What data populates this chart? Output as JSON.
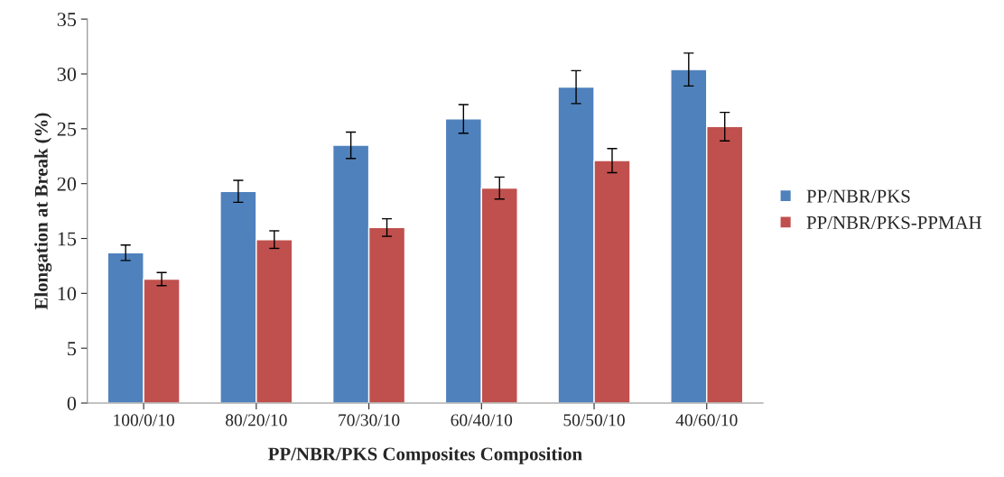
{
  "chart_data": {
    "type": "bar",
    "xlabel": "PP/NBR/PKS Composites Composition",
    "ylabel": "Elongation at Break (%)",
    "categories": [
      "100/0/10",
      "80/20/10",
      "70/30/10",
      "60/40/10",
      "50/50/10",
      "40/60/10"
    ],
    "series": [
      {
        "name": "PP/NBR/PKS",
        "color": "#4f81bd",
        "values": [
          13.7,
          19.3,
          23.5,
          25.9,
          28.8,
          30.4
        ],
        "errors": [
          0.7,
          1.0,
          1.2,
          1.3,
          1.5,
          1.5
        ]
      },
      {
        "name": "PP/NBR/PKS-PPMAH",
        "color": "#c0504d",
        "values": [
          11.3,
          14.9,
          16.0,
          19.6,
          22.1,
          25.2
        ],
        "errors": [
          0.6,
          0.8,
          0.8,
          1.0,
          1.1,
          1.3
        ]
      }
    ],
    "ylim": [
      0,
      35
    ],
    "yticks": [
      0,
      5,
      10,
      15,
      20,
      25,
      30,
      35
    ],
    "grid": false,
    "legend": "right"
  }
}
